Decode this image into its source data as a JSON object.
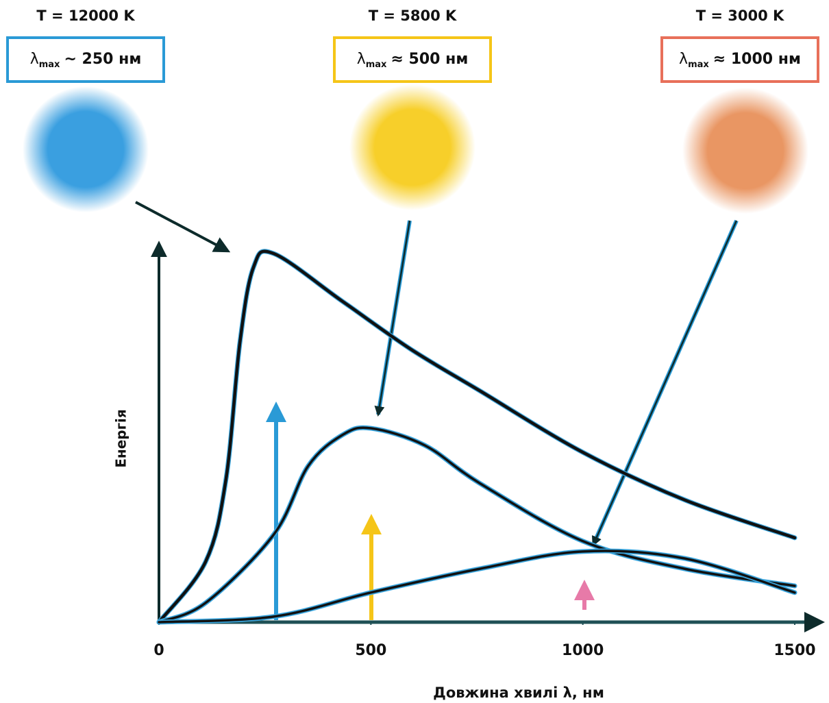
{
  "chart_data": {
    "type": "line",
    "annotations": [
      {
        "title": "T = 12000 K",
        "symbol": "λ",
        "subscript": "max",
        "text": "~ 250 нм",
        "color": "#2a9ad6"
      },
      {
        "title": "T = 5800 K",
        "symbol": "λ",
        "subscript": "max",
        "text": "≈ 500 нм",
        "color": "#f5c518"
      },
      {
        "title": "T = 3000 K",
        "symbol": "λ",
        "subscript": "max",
        "text": "≈ 1000 нм",
        "color": "#e8705a"
      }
    ],
    "x_label": "Довжина хвилі λ, нм",
    "y_label": "Енергія",
    "xlim": [
      0,
      1500
    ],
    "xticks": [
      0,
      500,
      1000,
      1500
    ],
    "ylim": [
      0,
      100
    ],
    "series": [
      {
        "color": "#111111",
        "x": [
          0,
          110,
          158,
          191,
          223,
          271,
          433,
          595,
          756,
          1000,
          1241,
          1500
        ],
        "values": [
          0,
          16.3,
          38.5,
          75.6,
          95.9,
          99.6,
          86.7,
          73.7,
          62.6,
          45.9,
          33,
          22.8
        ]
      },
      {
        "color": "#111111",
        "x": [
          0,
          110,
          271,
          352,
          433,
          500,
          627,
          756,
          1000,
          1241,
          1500
        ],
        "values": [
          0,
          5.2,
          23.7,
          42.2,
          50.6,
          52.4,
          47.8,
          37.6,
          21.9,
          14.4,
          9.8
        ]
      },
      {
        "color": "#111111",
        "x": [
          0,
          271,
          500,
          756,
          1000,
          1241,
          1500
        ],
        "values": [
          0,
          1.5,
          8,
          14.4,
          19.1,
          17.2,
          8
        ]
      }
    ]
  }
}
